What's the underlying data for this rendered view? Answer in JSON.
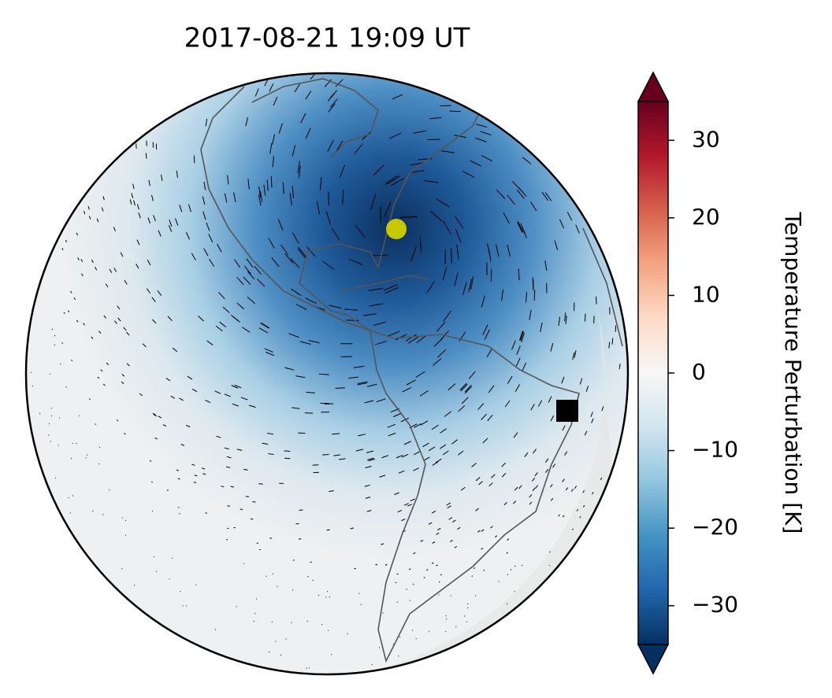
{
  "chart_data": {
    "type": "map",
    "title": "2017-08-21  19:09 UT",
    "colorbar": {
      "label": "Temperature Perturbation [K]",
      "lim": [
        -35,
        35
      ],
      "ticks": [
        {
          "value": -30,
          "label": "−30"
        },
        {
          "value": -20,
          "label": "−20"
        },
        {
          "value": -10,
          "label": "−10"
        },
        0,
        10,
        20,
        30
      ]
    }
  }
}
